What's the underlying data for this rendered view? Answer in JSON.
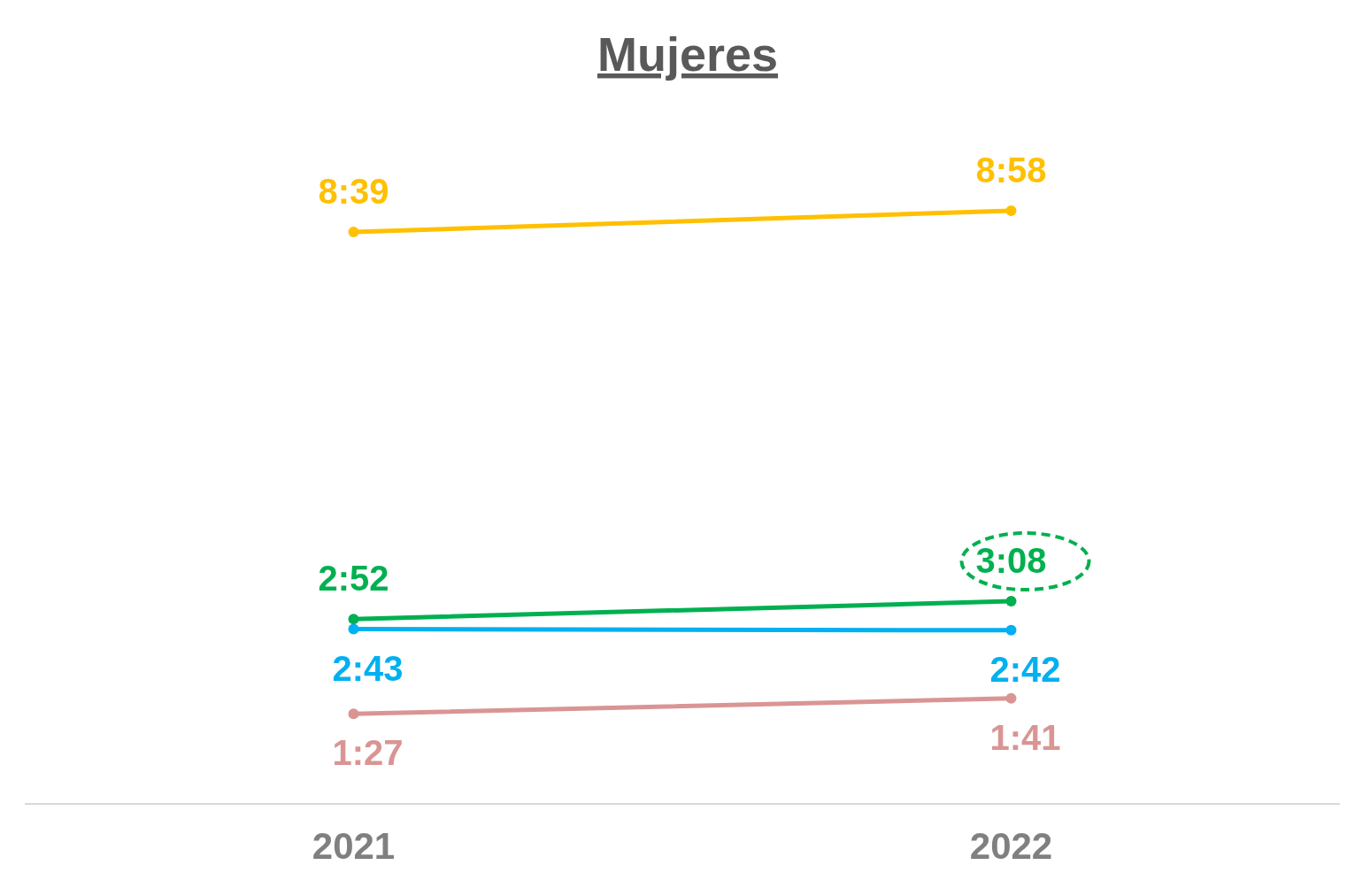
{
  "chart_data": {
    "type": "line",
    "title": "Mujeres",
    "categories": [
      "2021",
      "2022"
    ],
    "marker": "circle",
    "tick_labels": "x",
    "series": [
      {
        "color": "#ffc000",
        "values": [
          519,
          538
        ],
        "value_labels": [
          "8:39",
          "8:58"
        ]
      },
      {
        "color": "#00b050",
        "values": [
          172,
          188
        ],
        "value_labels": [
          "2:52",
          "3:08"
        ]
      },
      {
        "color": "#00b0f0",
        "values": [
          163,
          162
        ],
        "value_labels": [
          "2:43",
          "2:42"
        ]
      },
      {
        "color": "#d99594",
        "values": [
          87,
          101
        ],
        "value_labels": [
          "1:27",
          "1:41"
        ]
      }
    ]
  }
}
